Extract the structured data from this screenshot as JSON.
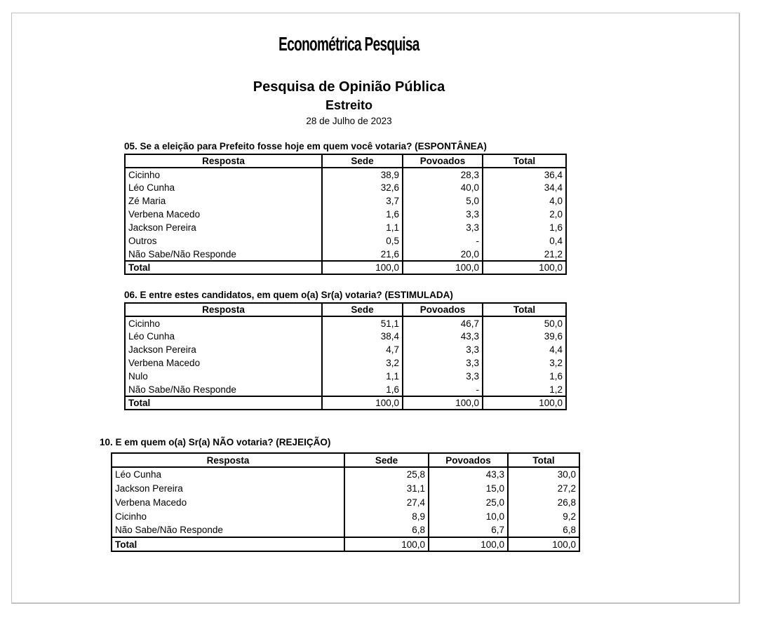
{
  "page": {
    "logo": "Econométrica Pesquisa",
    "title": "Pesquisa de Opinião Pública",
    "subtitle": "Estreito",
    "date": "28 de Julho de 2023"
  },
  "tables": [
    {
      "title": "05. Se a eleição para Prefeito fosse hoje em quem você votaria? (ESPONTÂNEA)",
      "columns": [
        "Resposta",
        "Sede",
        "Povoados",
        "Total"
      ],
      "rows": [
        [
          "Cicinho",
          "38,9",
          "28,3",
          "36,4"
        ],
        [
          "Léo Cunha",
          "32,6",
          "40,0",
          "34,4"
        ],
        [
          "Zé Maria",
          "3,7",
          "5,0",
          "4,0"
        ],
        [
          "Verbena Macedo",
          "1,6",
          "3,3",
          "2,0"
        ],
        [
          "Jackson Pereira",
          "1,1",
          "3,3",
          "1,6"
        ],
        [
          "Outros",
          "0,5",
          "-",
          "0,4"
        ],
        [
          "Não Sabe/Não Responde",
          "21,6",
          "20,0",
          "21,2"
        ]
      ],
      "total_row": [
        "Total",
        "100,0",
        "100,0",
        "100,0"
      ]
    },
    {
      "title": "06. E entre estes candidatos, em quem o(a) Sr(a) votaria? (ESTIMULADA)",
      "columns": [
        "Resposta",
        "Sede",
        "Povoados",
        "Total"
      ],
      "rows": [
        [
          "Cicinho",
          "51,1",
          "46,7",
          "50,0"
        ],
        [
          "Léo Cunha",
          "38,4",
          "43,3",
          "39,6"
        ],
        [
          "Jackson Pereira",
          "4,7",
          "3,3",
          "4,4"
        ],
        [
          "Verbena Macedo",
          "3,2",
          "3,3",
          "3,2"
        ],
        [
          "Nulo",
          "1,1",
          "3,3",
          "1,6"
        ],
        [
          "Não Sabe/Não Responde",
          "1,6",
          "-",
          "1,2"
        ]
      ],
      "total_row": [
        "Total",
        "100,0",
        "100,0",
        "100,0"
      ]
    },
    {
      "title": "10. E em quem o(a) Sr(a) NÃO votaria? (REJEIÇÃO)",
      "columns": [
        "Resposta",
        "Sede",
        "Povoados",
        "Total"
      ],
      "rows": [
        [
          "Léo Cunha",
          "25,8",
          "43,3",
          "30,0"
        ],
        [
          "Jackson Pereira",
          "31,1",
          "15,0",
          "27,2"
        ],
        [
          "Verbena Macedo",
          "27,4",
          "25,0",
          "26,8"
        ],
        [
          "Cicinho",
          "8,9",
          "10,0",
          "9,2"
        ],
        [
          "Não Sabe/Não Responde",
          "6,8",
          "6,7",
          "6,8"
        ]
      ],
      "total_row": [
        "Total",
        "100,0",
        "100,0",
        "100,0"
      ]
    }
  ]
}
